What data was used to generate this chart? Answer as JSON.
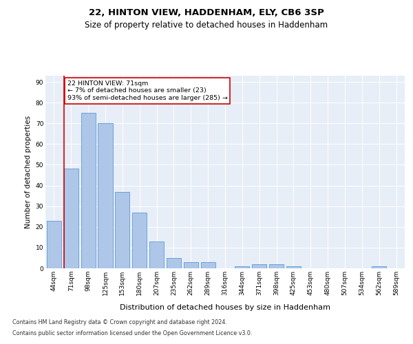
{
  "title1": "22, HINTON VIEW, HADDENHAM, ELY, CB6 3SP",
  "title2": "Size of property relative to detached houses in Haddenham",
  "xlabel": "Distribution of detached houses by size in Haddenham",
  "ylabel": "Number of detached properties",
  "categories": [
    "44sqm",
    "71sqm",
    "98sqm",
    "125sqm",
    "153sqm",
    "180sqm",
    "207sqm",
    "235sqm",
    "262sqm",
    "289sqm",
    "316sqm",
    "344sqm",
    "371sqm",
    "398sqm",
    "425sqm",
    "453sqm",
    "480sqm",
    "507sqm",
    "534sqm",
    "562sqm",
    "589sqm"
  ],
  "values": [
    23,
    48,
    75,
    70,
    37,
    27,
    13,
    5,
    3,
    3,
    0,
    1,
    2,
    2,
    1,
    0,
    0,
    0,
    0,
    1,
    0
  ],
  "bar_color": "#aec6e8",
  "bar_edge_color": "#5b9bd5",
  "highlight_bar_index": 1,
  "highlight_line_color": "#cc0000",
  "ylim_max": 93,
  "yticks": [
    0,
    10,
    20,
    30,
    40,
    50,
    60,
    70,
    80,
    90
  ],
  "annotation_text": "22 HINTON VIEW: 71sqm\n← 7% of detached houses are smaller (23)\n93% of semi-detached houses are larger (285) →",
  "annotation_box_edge_color": "#cc0000",
  "footer1": "Contains HM Land Registry data © Crown copyright and database right 2024.",
  "footer2": "Contains public sector information licensed under the Open Government Licence v3.0.",
  "bg_color": "#e8eef7",
  "fig_bg_color": "#ffffff",
  "title1_fontsize": 9.5,
  "title2_fontsize": 8.5,
  "tick_fontsize": 6.5,
  "ann_fontsize": 6.8,
  "footer_fontsize": 5.8,
  "ylabel_fontsize": 7.5,
  "xlabel_fontsize": 8
}
